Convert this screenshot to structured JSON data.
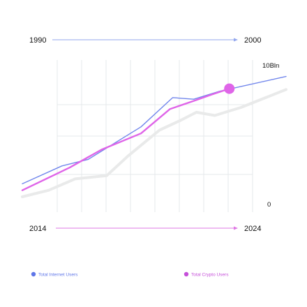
{
  "chart_data": {
    "type": "line",
    "timelines": [
      {
        "start": "1990",
        "end": "2000",
        "color": "#93a7ee"
      },
      {
        "start": "2014",
        "end": "2024",
        "color": "#df78e4"
      }
    ],
    "ytick_top": "10Bln",
    "ytick_bottom": "0",
    "ylim": [
      0,
      10
    ],
    "x_range": [
      0,
      10
    ],
    "series": [
      {
        "name": "Total Internet Users",
        "color": "#7186ec",
        "legend_color": "#5f76e8",
        "points": [
          [
            0,
            1.7
          ],
          [
            1.5,
            2.8
          ],
          [
            2.5,
            3.2
          ],
          [
            4.5,
            5.2
          ],
          [
            5.7,
            7.0
          ],
          [
            6.5,
            6.9
          ],
          [
            7.5,
            7.4
          ],
          [
            10,
            8.3
          ]
        ]
      },
      {
        "name": "Total Crypto Users",
        "color": "#df65e8",
        "legend_color": "#c54fd9",
        "points": [
          [
            0,
            1.3
          ],
          [
            1.8,
            2.7
          ],
          [
            3.0,
            3.8
          ],
          [
            4.5,
            4.8
          ],
          [
            5.6,
            6.3
          ],
          [
            6.5,
            6.8
          ],
          [
            7.2,
            7.2
          ],
          [
            7.85,
            7.55
          ]
        ],
        "marker_index": 7
      },
      {
        "name": "",
        "color": "#e9eaea",
        "points": [
          [
            0,
            0.9
          ],
          [
            1.0,
            1.3
          ],
          [
            2.0,
            2.0
          ],
          [
            3.2,
            2.2
          ],
          [
            4.0,
            3.4
          ],
          [
            5.2,
            5.0
          ],
          [
            6.0,
            5.6
          ],
          [
            6.6,
            6.1
          ],
          [
            7.3,
            5.9
          ],
          [
            8.3,
            6.4
          ],
          [
            10,
            7.5
          ]
        ]
      }
    ]
  }
}
